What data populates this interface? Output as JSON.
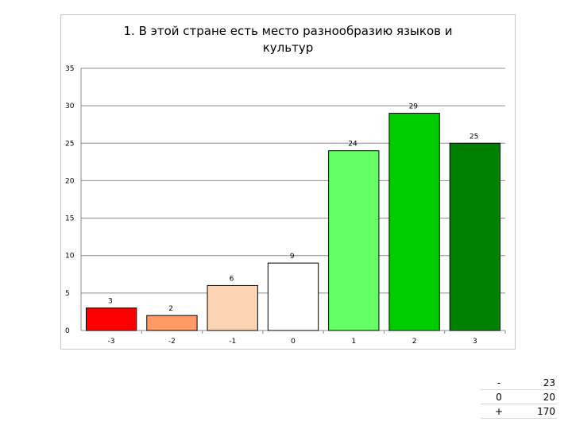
{
  "chart_data": {
    "type": "bar",
    "title": "1. В этой стране есть место разнообразию языков и культур",
    "categories": [
      "-3",
      "-2",
      "-1",
      "0",
      "1",
      "2",
      "3"
    ],
    "values": [
      3,
      2,
      6,
      9,
      24,
      29,
      25
    ],
    "colors": [
      "#ff0000",
      "#ff9966",
      "#fad4b4",
      "#ffffff",
      "#66ff66",
      "#00cc00",
      "#008000"
    ],
    "data_labels": [
      "3",
      "2",
      "6",
      "9",
      "24",
      "29",
      "25"
    ],
    "ylim": [
      0,
      35
    ],
    "yticks": [
      0,
      5,
      10,
      15,
      20,
      25,
      30,
      35
    ],
    "grid": true,
    "legend": "none"
  },
  "summary_table": {
    "rows": [
      {
        "label": "-",
        "value": "23"
      },
      {
        "label": "0",
        "value": "20"
      },
      {
        "label": "+",
        "value": "170"
      }
    ]
  }
}
